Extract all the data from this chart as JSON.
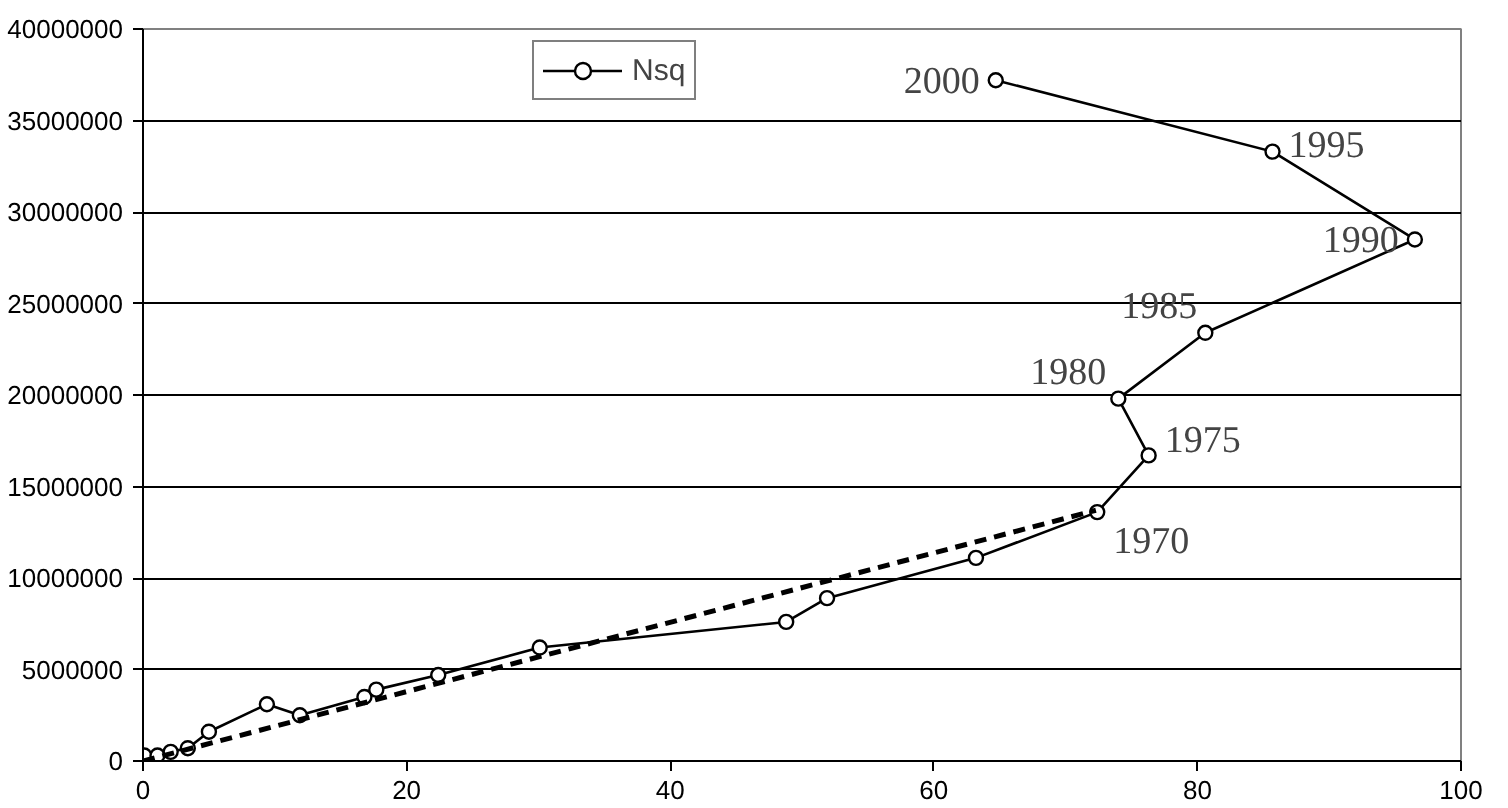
{
  "chart_data": {
    "type": "line",
    "series": [
      {
        "name": "Nsq",
        "color": "#000000",
        "marker": "circle",
        "line_style": "solid",
        "x": [
          0.1,
          1.1,
          2.1,
          3.4,
          5.0,
          9.4,
          11.9,
          16.8,
          17.7,
          22.4,
          30.1,
          48.8,
          51.9,
          63.2,
          72.4,
          76.3,
          74.0,
          80.6,
          96.5,
          85.7,
          64.7
        ],
        "values": [
          300000,
          300000,
          500000,
          700000,
          1600000,
          3100000,
          2500000,
          3500000,
          3900000,
          4700000,
          6200000,
          7600000,
          8900000,
          11100000,
          13600000,
          16700000,
          19800000,
          23400000,
          28500000,
          33300000,
          37200000
        ]
      },
      {
        "color": "#000000",
        "marker": "none",
        "line_style": "dashed",
        "x": [
          0,
          72.3
        ],
        "values": [
          0,
          13700000
        ]
      }
    ],
    "xlim": [
      0,
      100
    ],
    "xticks": [
      0,
      20,
      40,
      60,
      80,
      100
    ],
    "ylim": [
      0,
      40000000
    ],
    "yticks": [
      0,
      5000000,
      10000000,
      15000000,
      20000000,
      25000000,
      30000000,
      35000000,
      40000000
    ],
    "grid": "y",
    "legend": "top",
    "annotations": [
      {
        "text": "1970",
        "x": 72.4,
        "y": 13600000
      },
      {
        "text": "1975",
        "x": 76.3,
        "y": 16700000
      },
      {
        "text": "1980",
        "x": 74.0,
        "y": 19800000
      },
      {
        "text": "1985",
        "x": 80.6,
        "y": 23400000
      },
      {
        "text": "1990",
        "x": 96.5,
        "y": 28500000
      },
      {
        "text": "1995",
        "x": 85.7,
        "y": 33300000
      },
      {
        "text": "2000",
        "x": 64.7,
        "y": 37200000
      }
    ]
  }
}
